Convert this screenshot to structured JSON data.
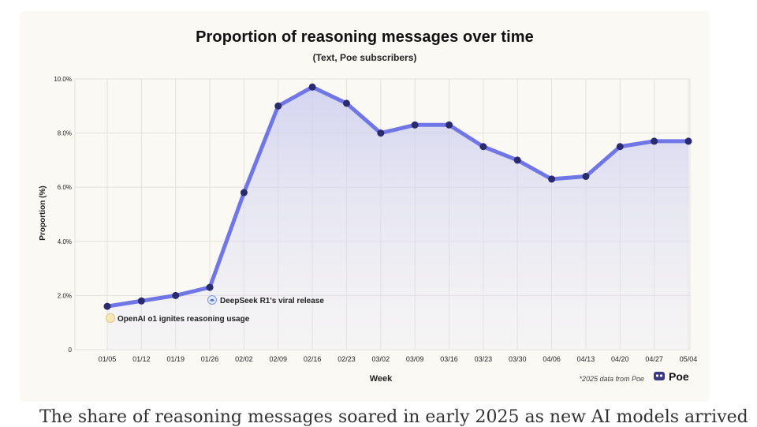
{
  "chart_data": {
    "type": "area",
    "title": "Proportion of reasoning messages over time",
    "subtitle": "(Text, Poe subscribers)",
    "xlabel": "Week",
    "ylabel": "Proportion (%)",
    "ylim": [
      0,
      10
    ],
    "yticks": [
      0,
      2,
      4,
      6,
      8,
      10
    ],
    "ytick_labels": [
      "0",
      "2.0%",
      "4.0%",
      "6.0%",
      "8.0%",
      "10.0%"
    ],
    "categories": [
      "01/05",
      "01/12",
      "01/19",
      "01/26",
      "02/02",
      "02/09",
      "02/16",
      "02/23",
      "03/02",
      "03/09",
      "03/16",
      "03/23",
      "03/30",
      "04/06",
      "04/13",
      "04/20",
      "04/27",
      "05/04"
    ],
    "values": [
      1.6,
      1.8,
      2.0,
      2.3,
      5.8,
      9.0,
      9.7,
      9.1,
      8.0,
      8.3,
      8.3,
      7.5,
      7.0,
      6.3,
      6.4,
      7.5,
      7.7,
      7.7
    ],
    "grid": true,
    "annotations": [
      {
        "text": "DeepSeek R1's viral release",
        "icon": "whale-icon",
        "x": "01/26"
      },
      {
        "text": "OpenAI o1 ignites reasoning usage",
        "icon": "sparkle-icon",
        "x": "01/05"
      }
    ],
    "footnote": "*2025 data from Poe",
    "brand": "Poe",
    "colors": {
      "line": "#7076e6",
      "marker": "#2a2a6e",
      "fill": "#c7c9ef",
      "grid": "#e3e1dc"
    }
  },
  "below_text": "The share of reasoning messages soared in early 2025 as new AI models arrived"
}
